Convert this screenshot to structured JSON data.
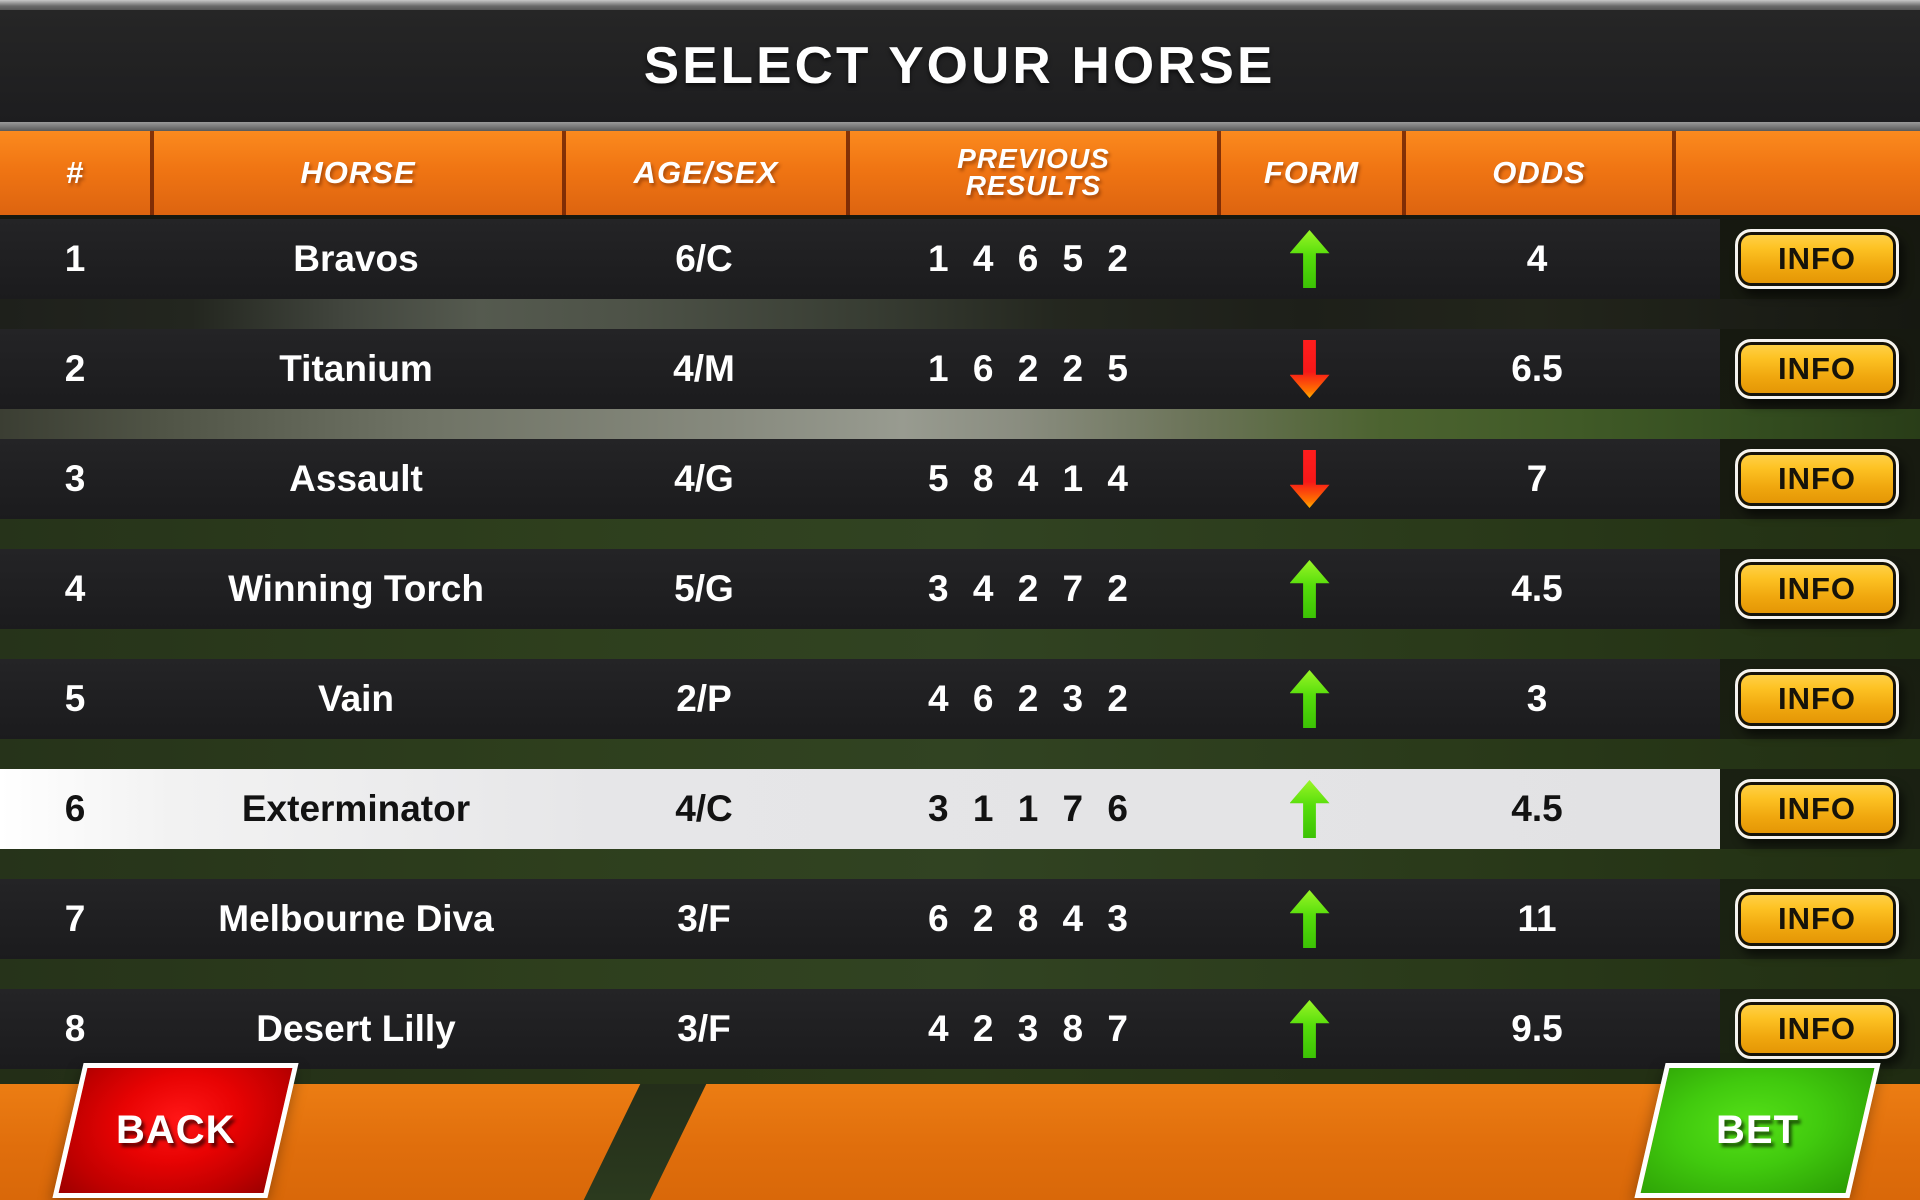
{
  "title": "SELECT YOUR HORSE",
  "table": {
    "columns": {
      "num": "#",
      "horse": "HORSE",
      "age_sex": "AGE/SEX",
      "previous_results": "PREVIOUS RESULTS",
      "form": "FORM",
      "odds": "ODDS"
    },
    "rows": [
      {
        "num": "1",
        "horse": "Bravos",
        "age_sex": "6/C",
        "previous_results": "1 4 6 5 2",
        "form": "up",
        "odds": "4",
        "info_label": "INFO",
        "selected": false
      },
      {
        "num": "2",
        "horse": "Titanium",
        "age_sex": "4/M",
        "previous_results": "1 6 2 2 5",
        "form": "down",
        "odds": "6.5",
        "info_label": "INFO",
        "selected": false
      },
      {
        "num": "3",
        "horse": "Assault",
        "age_sex": "4/G",
        "previous_results": "5 8 4 1 4",
        "form": "down",
        "odds": "7",
        "info_label": "INFO",
        "selected": false
      },
      {
        "num": "4",
        "horse": "Winning Torch",
        "age_sex": "5/G",
        "previous_results": "3 4 2 7 2",
        "form": "up",
        "odds": "4.5",
        "info_label": "INFO",
        "selected": false
      },
      {
        "num": "5",
        "horse": "Vain",
        "age_sex": "2/P",
        "previous_results": "4 6 2 3 2",
        "form": "up",
        "odds": "3",
        "info_label": "INFO",
        "selected": false
      },
      {
        "num": "6",
        "horse": "Exterminator",
        "age_sex": "4/C",
        "previous_results": "3 1 1 7 6",
        "form": "up",
        "odds": "4.5",
        "info_label": "INFO",
        "selected": true
      },
      {
        "num": "7",
        "horse": "Melbourne Diva",
        "age_sex": "3/F",
        "previous_results": "6 2 8 4 3",
        "form": "up",
        "odds": "11",
        "info_label": "INFO",
        "selected": false
      },
      {
        "num": "8",
        "horse": "Desert Lilly",
        "age_sex": "3/F",
        "previous_results": "4 2 3 8 7",
        "form": "up",
        "odds": "9.5",
        "info_label": "INFO",
        "selected": false
      }
    ]
  },
  "buttons": {
    "back": "BACK",
    "bet": "BET"
  },
  "colors": {
    "header_orange": "#f07513",
    "row_dark": "#1d1d1f",
    "selected_row": "#e6e6e8",
    "info_gold": "#f0a70e",
    "form_up_green": "#55dd0a",
    "form_down_red": "#f71818",
    "back_red": "#e80303",
    "bet_green": "#41ca0e",
    "bottom_bar_orange": "#e06e0c"
  }
}
